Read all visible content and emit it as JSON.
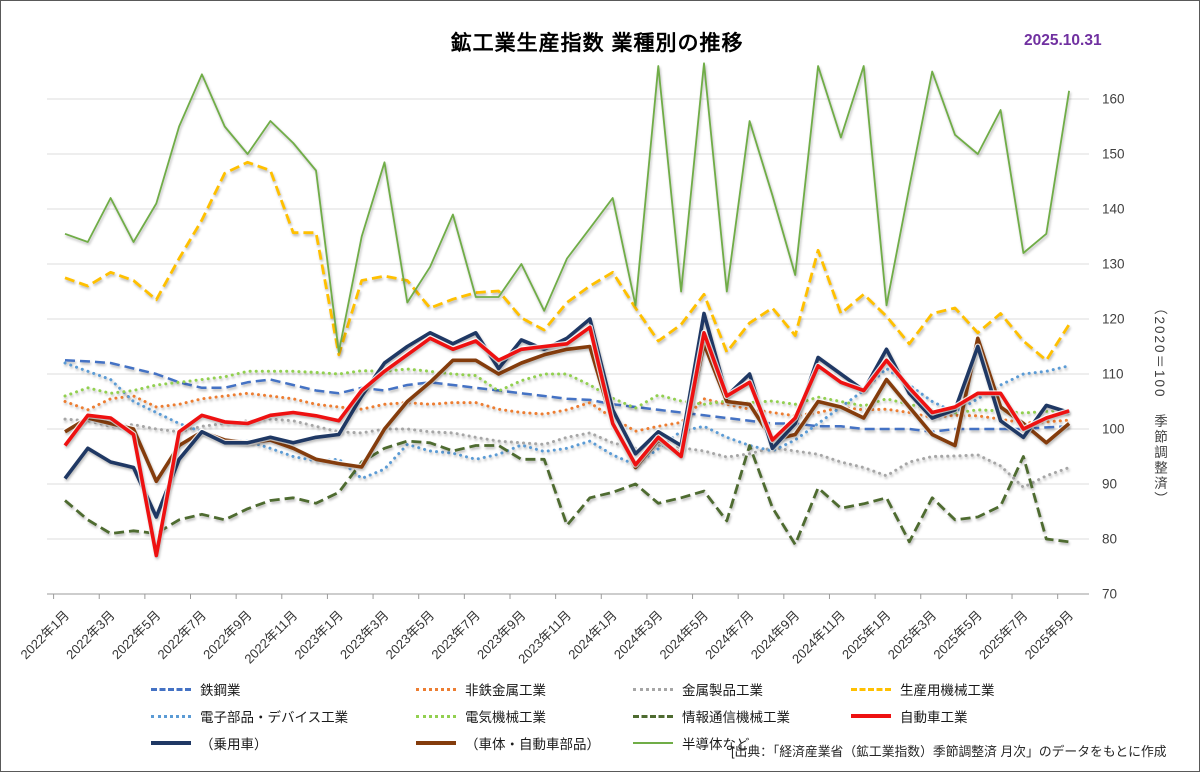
{
  "header": {
    "title": "鉱工業生産指数 業種別の推移",
    "date": "2025.10.31"
  },
  "y_axis": {
    "title_vertical": "（2020＝100　季節調整済）",
    "ticks": [
      70,
      80,
      90,
      100,
      110,
      120,
      130,
      140,
      150,
      160
    ]
  },
  "source_note": "[出典：「経済産業省（鉱工業指数）季節調整済 月次」のデータをもとに作成",
  "chart_data": {
    "type": "line",
    "title": "鉱工業生産指数 業種別の推移",
    "ylabel": "（2020＝100　季節調整済）",
    "ylim": [
      70,
      166.5
    ],
    "grid": true,
    "legend_position": "bottom",
    "x_label_step": 2,
    "z_order": [
      0,
      1,
      2,
      3,
      4,
      5,
      6,
      10,
      9,
      8,
      7
    ],
    "x": [
      "2022年1月",
      "2022年2月",
      "2022年3月",
      "2022年4月",
      "2022年5月",
      "2022年6月",
      "2022年7月",
      "2022年8月",
      "2022年9月",
      "2022年10月",
      "2022年11月",
      "2022年12月",
      "2023年1月",
      "2023年2月",
      "2023年3月",
      "2023年4月",
      "2023年5月",
      "2023年6月",
      "2023年7月",
      "2023年8月",
      "2023年9月",
      "2023年10月",
      "2023年11月",
      "2023年12月",
      "2024年1月",
      "2024年2月",
      "2024年3月",
      "2024年4月",
      "2024年5月",
      "2024年6月",
      "2024年7月",
      "2024年8月",
      "2024年9月",
      "2024年10月",
      "2024年11月",
      "2024年12月",
      "2025年1月",
      "2025年2月",
      "2025年3月",
      "2025年4月",
      "2025年5月",
      "2025年6月",
      "2025年7月",
      "2025年8月",
      "2025年9月"
    ],
    "series": [
      {
        "name": "鉄鋼業",
        "color": "#4472C4",
        "style": "dashed",
        "width": 2.5,
        "values": [
          112.5,
          112.3,
          112,
          111,
          110,
          108.5,
          107.5,
          107.5,
          108.5,
          109,
          108,
          107,
          106.5,
          107.5,
          107,
          108,
          108.5,
          108,
          107.5,
          107,
          106.5,
          106,
          105.5,
          105.3,
          104.5,
          104,
          103.5,
          103,
          102.5,
          102,
          101.5,
          101,
          101,
          100.5,
          100.5,
          100,
          100,
          100,
          99.5,
          100,
          100,
          100,
          100,
          100.3,
          100.5
        ]
      },
      {
        "name": "非鉄金属工業",
        "color": "#ED7D31",
        "style": "dotted",
        "width": 3,
        "values": [
          105,
          103.5,
          105.5,
          106,
          104,
          104.5,
          105.5,
          106,
          106.5,
          106,
          105.5,
          104.5,
          104,
          103.6,
          104.5,
          104.8,
          104.5,
          104.8,
          104.8,
          103.6,
          103,
          102.7,
          103.5,
          104.8,
          102,
          99.6,
          100.5,
          101.2,
          105.5,
          104.5,
          103.6,
          103,
          102.4,
          103,
          103.9,
          103.5,
          103.6,
          103,
          102.1,
          102.5,
          102.4,
          101.8,
          101.1,
          101.3,
          101.6
        ]
      },
      {
        "name": "金属製品工業",
        "color": "#A6A6A6",
        "style": "dotted",
        "width": 3,
        "values": [
          101.8,
          101.5,
          100.5,
          100.8,
          100,
          99.5,
          100.5,
          101,
          101.5,
          101.8,
          101.5,
          100.5,
          99.5,
          99.3,
          100,
          100,
          99.5,
          99.3,
          98.5,
          97.8,
          97.5,
          97.2,
          98.5,
          99.3,
          97.5,
          96.5,
          97,
          96.6,
          96,
          94.9,
          95.5,
          96.6,
          96,
          95.4,
          94,
          93,
          91.5,
          94,
          95,
          95.1,
          95.3,
          93.3,
          89.4,
          91.5,
          93
        ]
      },
      {
        "name": "生産用機械工業",
        "color": "#FFC000",
        "style": "dashed",
        "width": 2.8,
        "values": [
          127.5,
          126,
          128.5,
          127,
          123.5,
          131,
          138,
          146.5,
          148.5,
          147,
          135.7,
          135.7,
          113.5,
          127,
          127.8,
          127,
          122,
          123.6,
          124.8,
          125.1,
          120.2,
          118,
          123,
          126,
          128.5,
          122,
          116,
          119,
          124.5,
          114,
          119.3,
          122,
          117,
          132.5,
          121,
          124.5,
          120.5,
          115.5,
          121,
          122,
          117.5,
          121,
          116,
          112.5,
          119
        ]
      },
      {
        "name": "電子部品・デバイス工業",
        "color": "#5B9BD5",
        "style": "dotted",
        "width": 3,
        "values": [
          112,
          110.5,
          109,
          105,
          103,
          101,
          99.5,
          98,
          97.8,
          96.5,
          95,
          94.2,
          94.5,
          91,
          92.7,
          97.2,
          96,
          95.6,
          94.5,
          95.4,
          97.1,
          95.9,
          96.5,
          97.8,
          95.3,
          93.5,
          96.4,
          99.6,
          100.5,
          98.5,
          97,
          96,
          98,
          101,
          104,
          107,
          111,
          108,
          105,
          103,
          105.5,
          108,
          110,
          110.5,
          111.5
        ]
      },
      {
        "name": "電気機械工業",
        "color": "#92D050",
        "style": "dotted",
        "width": 3,
        "values": [
          106,
          107.5,
          106.5,
          107,
          108,
          108.5,
          109,
          109.5,
          110.5,
          110.5,
          110.5,
          110.3,
          110,
          110.6,
          110.5,
          110.9,
          110.5,
          110,
          109.7,
          106.9,
          108.8,
          110,
          110,
          108,
          105.6,
          103.8,
          106.2,
          105.1,
          104.5,
          105.1,
          104.8,
          105.1,
          104.5,
          105.8,
          105,
          104.2,
          105.5,
          104.5,
          103.5,
          102.9,
          103.5,
          103.3,
          102.9,
          103.2,
          103.5
        ]
      },
      {
        "name": "情報通信機械工業",
        "color": "#4E6B30",
        "style": "dashed",
        "width": 2.8,
        "values": [
          87,
          83.5,
          81,
          81.5,
          81,
          83.5,
          84.5,
          83.5,
          85.5,
          87,
          87.5,
          86.5,
          88.5,
          94,
          96.5,
          97.8,
          97.5,
          96,
          97,
          97,
          94.5,
          94.5,
          82.5,
          87.5,
          88.5,
          90,
          86.5,
          87.5,
          88.7,
          83.3,
          97,
          85.7,
          79,
          89.3,
          85.6,
          86.4,
          87.5,
          79.5,
          87.5,
          83.5,
          84,
          86,
          95,
          80,
          79.5
        ]
      },
      {
        "name": "自動車工業",
        "color": "#EE1111",
        "style": "solid",
        "width": 3.6,
        "values": [
          97,
          102.5,
          102,
          99,
          77,
          99.5,
          102.5,
          101.3,
          101,
          102.5,
          103,
          102.4,
          101.5,
          107,
          110.5,
          113.5,
          116.5,
          114.5,
          116,
          112.5,
          114.5,
          115,
          115.5,
          118.5,
          101,
          93.5,
          98.5,
          95,
          117.5,
          106,
          108.5,
          98,
          102,
          111.5,
          108.5,
          107,
          112.5,
          107.5,
          103,
          104,
          106.5,
          106.5,
          100,
          102,
          103.3
        ]
      },
      {
        "name": "（乗用車）",
        "color": "#1F3864",
        "style": "solid",
        "width": 3.6,
        "values": [
          91,
          96.5,
          94,
          93,
          84,
          94.5,
          99.5,
          97.5,
          97.5,
          98.5,
          97.5,
          98.5,
          99,
          106,
          112,
          115,
          117.5,
          115.5,
          117.5,
          111,
          116.2,
          114.5,
          116.5,
          120,
          103.5,
          95.5,
          99.5,
          97,
          121,
          106,
          110,
          96.5,
          101,
          113,
          110,
          107,
          114.5,
          106.5,
          102,
          103.5,
          115,
          101.5,
          98.5,
          104.3,
          103
        ]
      },
      {
        "name": "（車体・自動車部品）",
        "color": "#843C0C",
        "style": "solid",
        "width": 3.6,
        "values": [
          99.5,
          102,
          101,
          100,
          90.5,
          97,
          99.5,
          98,
          97.5,
          98,
          96.5,
          94.5,
          93.7,
          93.1,
          100,
          105,
          108.5,
          112.5,
          112.5,
          110,
          112,
          113.5,
          114.5,
          115,
          101,
          93,
          98,
          95.5,
          115.5,
          105,
          104.5,
          98,
          99,
          105,
          104,
          102,
          109,
          104,
          99,
          97,
          116.5,
          104,
          101,
          97.5,
          101
        ]
      },
      {
        "name": "半導体など",
        "color": "#70AD47",
        "style": "solid",
        "width": 1.8,
        "values": [
          135.5,
          134,
          142,
          134,
          141,
          155,
          164.5,
          155,
          150,
          156,
          152,
          147,
          114,
          135,
          148.5,
          123,
          129.5,
          139,
          124,
          124,
          130,
          121.5,
          131,
          136.5,
          142,
          122.5,
          166,
          125,
          166.5,
          125,
          156,
          142.5,
          128,
          166,
          153,
          166,
          122.5,
          144,
          165,
          153.5,
          150,
          158,
          132,
          135.5,
          161.5
        ]
      }
    ]
  }
}
